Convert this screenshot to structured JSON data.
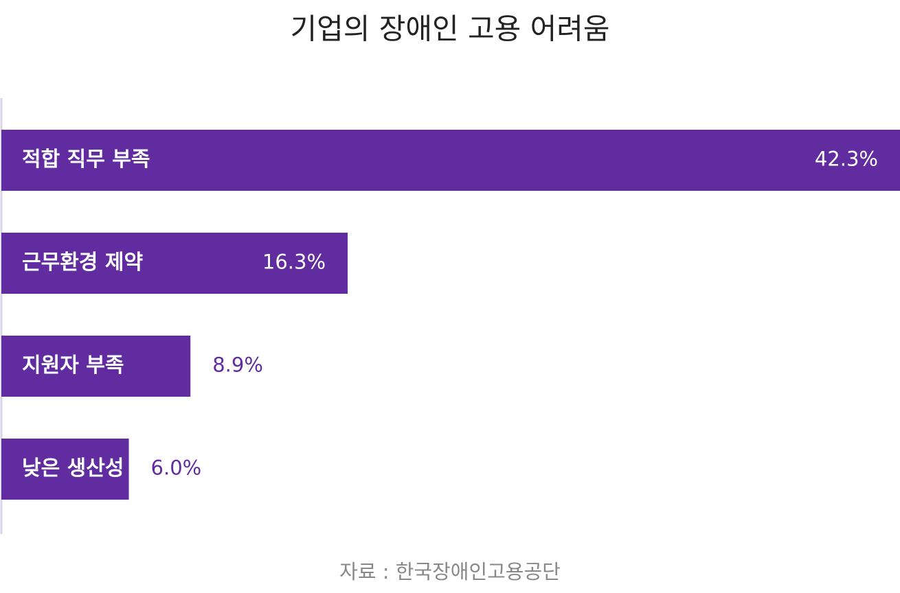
{
  "chart_data": {
    "type": "bar",
    "orientation": "horizontal",
    "title": "기업의 장애인 고용 어려움",
    "categories": [
      "적합 직무 부족",
      "근무환경 제약",
      "지원자 부족",
      "낮은 생산성"
    ],
    "values": [
      42.3,
      16.3,
      8.9,
      6.0
    ],
    "value_labels": [
      "42.3%",
      "16.3%",
      "8.9%",
      "6.0%"
    ],
    "color": "#622ca1",
    "source": "자료 : 한국장애인고용공단"
  }
}
